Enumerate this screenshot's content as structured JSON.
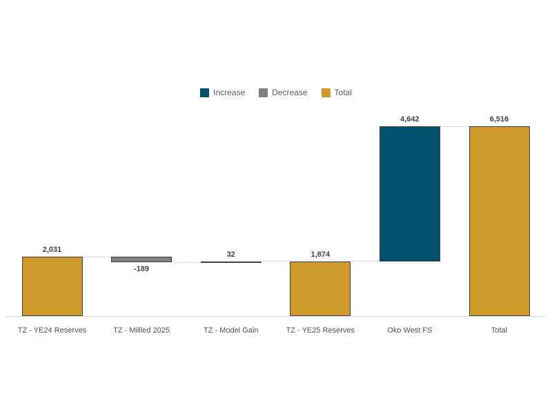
{
  "chart_data": {
    "type": "bar",
    "subtype": "waterfall",
    "title": "",
    "xlabel": "",
    "ylabel": "",
    "grid": false,
    "legend_position": "top-center",
    "categories": [
      "TZ - YE24 Reserves",
      "TZ - Millled 2025",
      "TZ - Model Gain",
      "TZ - YE25 Reserves",
      "Oko West FS",
      "Total"
    ],
    "values": [
      2031,
      -189,
      32,
      1874,
      4642,
      6516
    ],
    "labels": [
      "2,031",
      "-189",
      "32",
      "1,874",
      "4,642",
      "6,516"
    ],
    "bar_types": [
      "total",
      "decrease",
      "increase",
      "total",
      "increase",
      "total"
    ],
    "ylim": [
      0,
      6750
    ],
    "legend": [
      {
        "label": "Increase",
        "color": "#02516c"
      },
      {
        "label": "Decrease",
        "color": "#7f7f7f"
      },
      {
        "label": "Total",
        "color": "#ce9a2b"
      }
    ],
    "colors": {
      "increase": "#02516c",
      "decrease": "#7f7f7f",
      "total": "#ce9a2b",
      "bar_border": "#404040",
      "axis_line": "#d6d6d6",
      "connector": "#dcdcdc",
      "label_text": "#404040",
      "category_text": "#4f4f4f",
      "legend_text": "#595959"
    }
  }
}
